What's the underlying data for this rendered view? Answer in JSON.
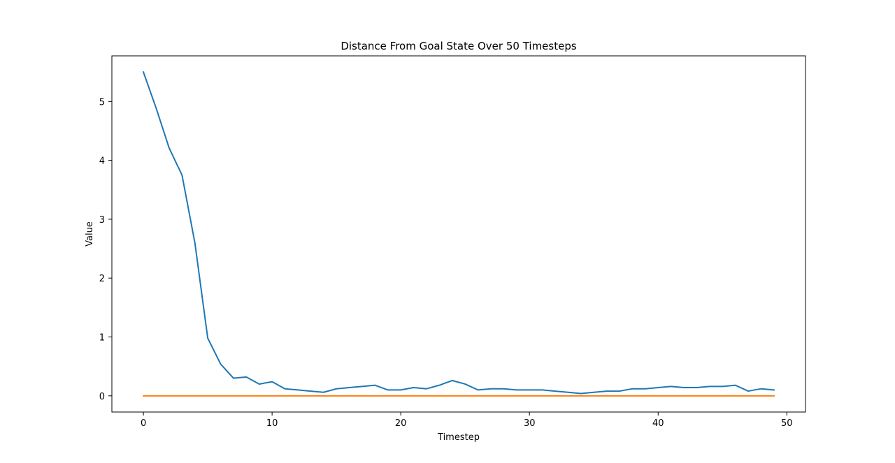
{
  "chart_data": {
    "type": "line",
    "title": "Distance From Goal State Over 50 Timesteps",
    "xlabel": "Timestep",
    "ylabel": "Value",
    "xlim": [
      -2.45,
      51.45
    ],
    "ylim": [
      -0.275,
      5.775
    ],
    "xticks": [
      0,
      10,
      20,
      30,
      40,
      50
    ],
    "yticks": [
      0,
      1,
      2,
      3,
      4,
      5
    ],
    "grid": false,
    "series": [
      {
        "color": "#1f77b4",
        "x": [
          0,
          1,
          2,
          3,
          4,
          5,
          6,
          7,
          8,
          9,
          10,
          11,
          12,
          13,
          14,
          15,
          16,
          17,
          18,
          19,
          20,
          21,
          22,
          23,
          24,
          25,
          26,
          27,
          28,
          29,
          30,
          31,
          32,
          33,
          34,
          35,
          36,
          37,
          38,
          39,
          40,
          41,
          42,
          43,
          44,
          45,
          46,
          47,
          48,
          49
        ],
        "values": [
          5.5,
          4.88,
          4.21,
          3.75,
          2.6,
          0.98,
          0.54,
          0.3,
          0.32,
          0.2,
          0.24,
          0.12,
          0.1,
          0.08,
          0.06,
          0.12,
          0.14,
          0.16,
          0.18,
          0.1,
          0.1,
          0.14,
          0.12,
          0.18,
          0.26,
          0.2,
          0.1,
          0.12,
          0.12,
          0.1,
          0.1,
          0.1,
          0.08,
          0.06,
          0.04,
          0.06,
          0.08,
          0.08,
          0.12,
          0.12,
          0.14,
          0.16,
          0.14,
          0.14,
          0.16,
          0.16,
          0.18,
          0.08,
          0.12,
          0.1
        ]
      },
      {
        "color": "#ff7f0e",
        "x": [
          0,
          1,
          2,
          3,
          4,
          5,
          6,
          7,
          8,
          9,
          10,
          11,
          12,
          13,
          14,
          15,
          16,
          17,
          18,
          19,
          20,
          21,
          22,
          23,
          24,
          25,
          26,
          27,
          28,
          29,
          30,
          31,
          32,
          33,
          34,
          35,
          36,
          37,
          38,
          39,
          40,
          41,
          42,
          43,
          44,
          45,
          46,
          47,
          48,
          49
        ],
        "values": [
          0,
          0,
          0,
          0,
          0,
          0,
          0,
          0,
          0,
          0,
          0,
          0,
          0,
          0,
          0,
          0,
          0,
          0,
          0,
          0,
          0,
          0,
          0,
          0,
          0,
          0,
          0,
          0,
          0,
          0,
          0,
          0,
          0,
          0,
          0,
          0,
          0,
          0,
          0,
          0,
          0,
          0,
          0,
          0,
          0,
          0,
          0,
          0,
          0,
          0
        ]
      }
    ]
  }
}
